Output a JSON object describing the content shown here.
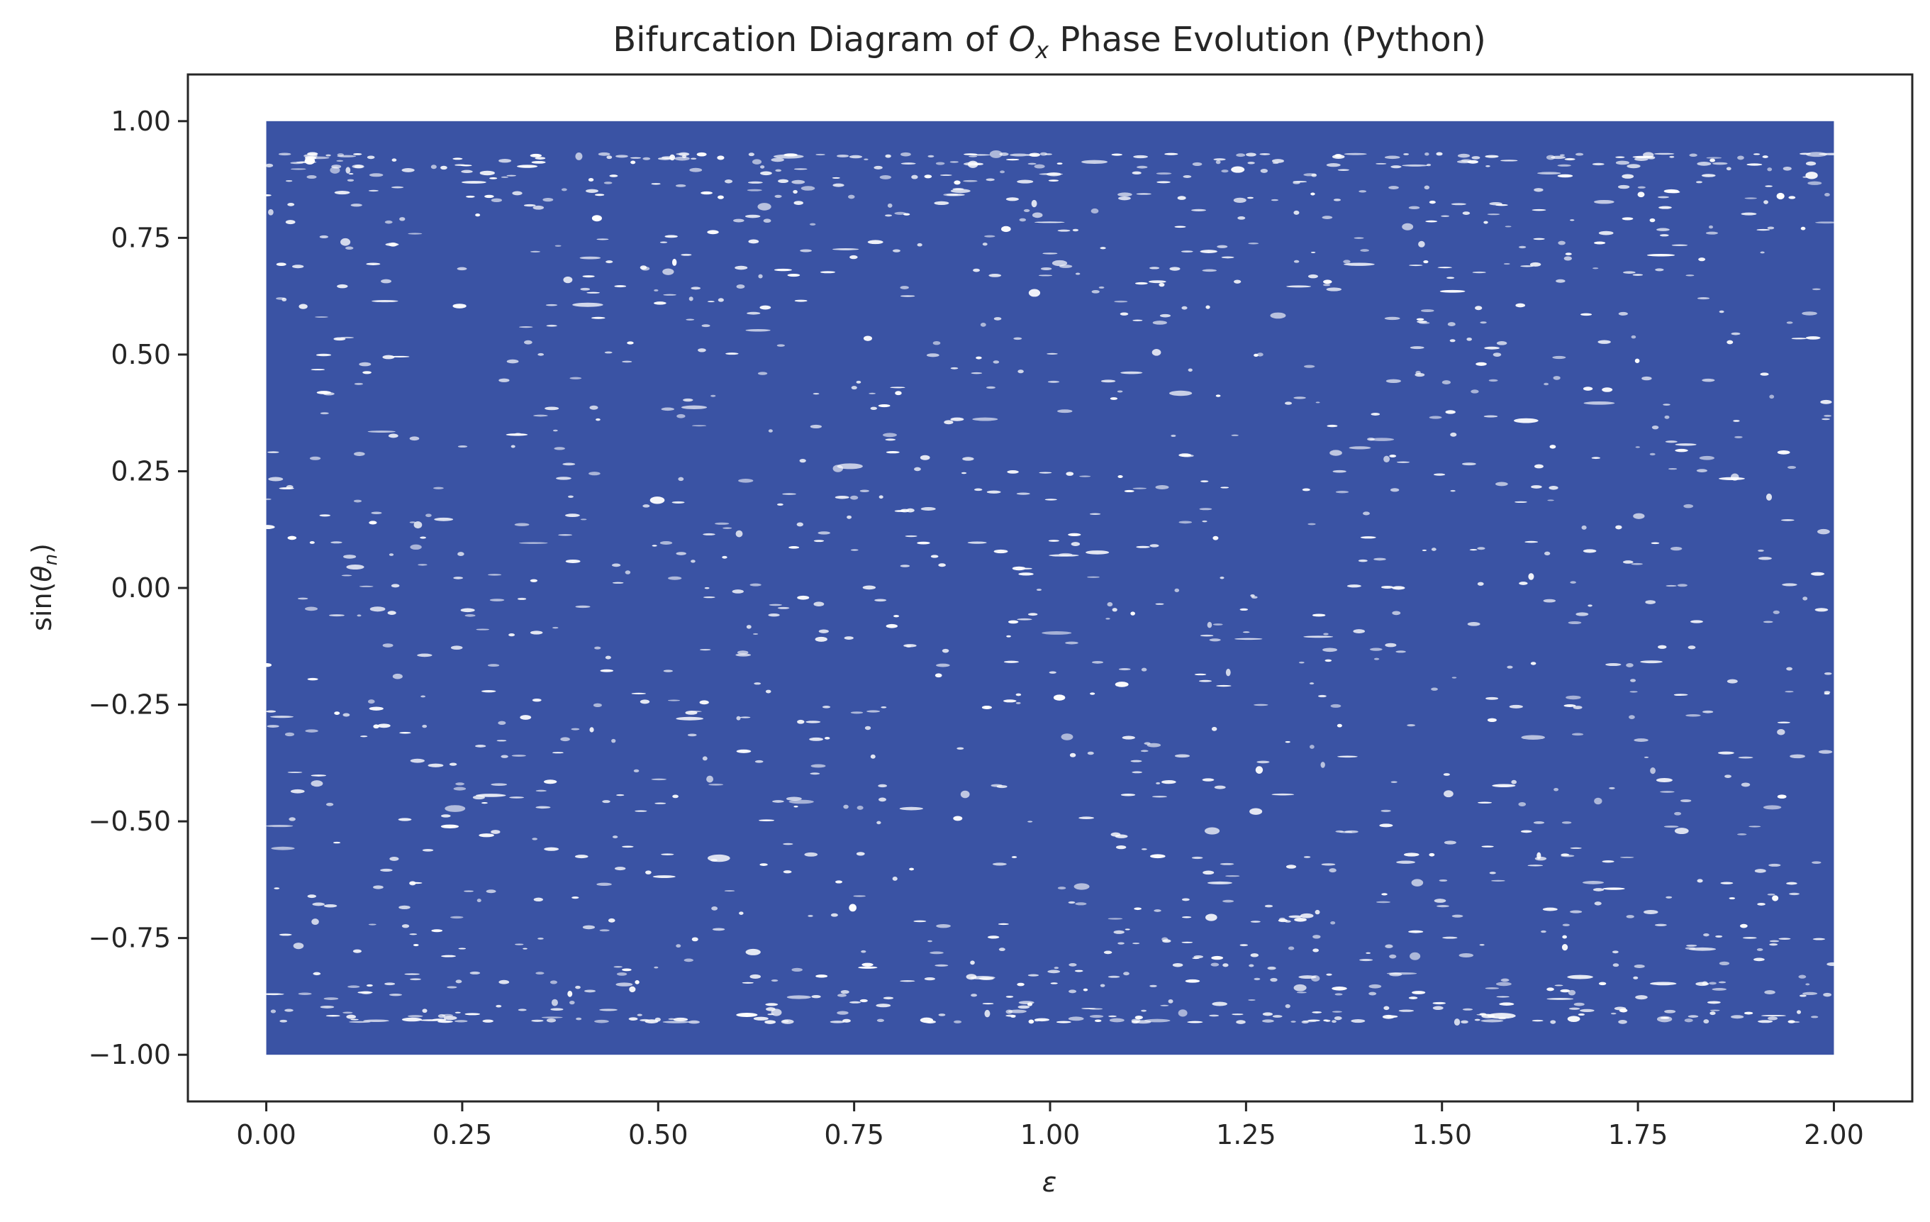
{
  "chart_data": {
    "type": "scatter",
    "title": {
      "prefix": "Bifurcation Diagram of ",
      "symbol": "O",
      "symbol_subscript": "x",
      "suffix": " Phase Evolution (Python)"
    },
    "xlabel": "ε",
    "ylabel": {
      "func": "sin(",
      "symbol": "θ",
      "subscript": "n",
      "close": ")"
    },
    "xlim": [
      -0.1,
      2.1
    ],
    "ylim": [
      -1.1,
      1.1
    ],
    "x_data_range": [
      0.0,
      2.0
    ],
    "y_data_range": [
      -1.0,
      1.0
    ],
    "x_ticks": [
      0.0,
      0.25,
      0.5,
      0.75,
      1.0,
      1.25,
      1.5,
      1.75,
      2.0
    ],
    "x_tick_labels": [
      "0.00",
      "0.25",
      "0.50",
      "0.75",
      "1.00",
      "1.25",
      "1.50",
      "1.75",
      "2.00"
    ],
    "y_ticks": [
      1.0,
      0.75,
      0.5,
      0.25,
      0.0,
      -0.25,
      -0.5,
      -0.75,
      -1.0
    ],
    "y_tick_labels": [
      "1.00",
      "0.75",
      "0.50",
      "0.25",
      "0.00",
      "−0.25",
      "−0.50",
      "−0.75",
      "−1.00"
    ],
    "series": [
      {
        "color": "#3a53a4",
        "description_of_density": "near-continuous band of points spanning full range with scattered white gaps"
      }
    ],
    "grid": false,
    "legend": "none"
  }
}
